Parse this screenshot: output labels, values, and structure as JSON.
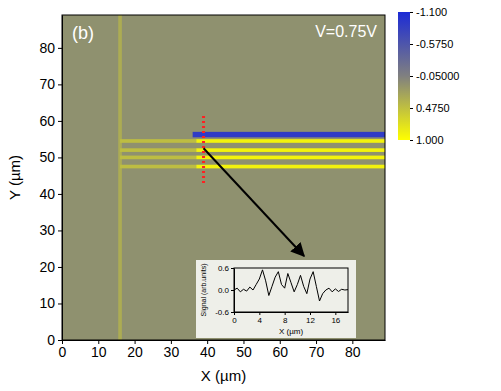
{
  "chart_data": [
    {
      "type": "heatmap",
      "panel_label": "(b)",
      "annotation": "V=0.75V",
      "x_label": "X (µm)",
      "y_label": "Y (µm)",
      "xlim": [
        0,
        89
      ],
      "ylim": [
        0,
        89
      ],
      "xticks": [
        0,
        10,
        20,
        30,
        40,
        50,
        60,
        70,
        80
      ],
      "yticks": [
        0,
        10,
        20,
        30,
        40,
        50,
        60,
        70,
        80
      ],
      "cells": [
        {
          "x": [
            0,
            89
          ],
          "y": [
            0,
            89
          ],
          "value": 0.05
        },
        {
          "x": [
            15.5,
            16.5
          ],
          "y": [
            0,
            89
          ],
          "value": 0.3
        },
        {
          "x": [
            16,
            37
          ],
          "y": [
            54,
            55
          ],
          "value": 0.45
        },
        {
          "x": [
            16,
            37
          ],
          "y": [
            51.5,
            52.5
          ],
          "value": 0.45
        },
        {
          "x": [
            16,
            37
          ],
          "y": [
            49.5,
            50.5
          ],
          "value": 0.45
        },
        {
          "x": [
            16,
            37
          ],
          "y": [
            47,
            48
          ],
          "value": 0.45
        },
        {
          "x": [
            37,
            89
          ],
          "y": [
            54,
            55
          ],
          "value": 0.9
        },
        {
          "x": [
            37,
            89
          ],
          "y": [
            51.5,
            52.5
          ],
          "value": 0.9
        },
        {
          "x": [
            37,
            89
          ],
          "y": [
            49.5,
            50.5
          ],
          "value": 0.9
        },
        {
          "x": [
            37,
            89
          ],
          "y": [
            47,
            48
          ],
          "value": 0.9
        },
        {
          "x": [
            36,
            89
          ],
          "y": [
            55.5,
            57
          ],
          "value": -0.9
        }
      ],
      "colorbar": {
        "range": [
          -1.1,
          1.0
        ],
        "ticks": [
          {
            "value": -1.1,
            "label": "-1.100"
          },
          {
            "value": -0.575,
            "label": "-0.5750"
          },
          {
            "value": -0.05,
            "label": "-0.05000"
          },
          {
            "value": 0.475,
            "label": "0.4750"
          },
          {
            "value": 1.0,
            "label": "1.000"
          }
        ],
        "colors": [
          "#1c2bd6",
          "#808080",
          "#ffff00"
        ]
      },
      "profile_line": {
        "x": 39,
        "y": [
          43,
          62
        ],
        "color": "#ff2020"
      }
    },
    {
      "type": "line",
      "x_label": "X (µm)",
      "y_label": "Signal (arb.units)",
      "xlim": [
        0,
        18
      ],
      "ylim": [
        -0.6,
        0.6
      ],
      "xticks": [
        0,
        4,
        8,
        12,
        16
      ],
      "yticks": [
        -0.6,
        {
          "value": 0,
          "label": "0.0"
        },
        0.6
      ],
      "color": "#000000",
      "x": [
        0,
        0.5,
        1,
        1.5,
        2,
        2.5,
        3,
        3.5,
        4,
        4.5,
        5,
        5.5,
        6,
        6.5,
        7,
        7.5,
        8,
        8.5,
        9,
        9.5,
        10,
        10.5,
        11,
        11.5,
        12,
        12.5,
        13,
        13.5,
        14,
        14.5,
        15,
        15.5,
        16,
        16.5,
        17,
        17.5,
        18
      ],
      "values": [
        0.0,
        0.05,
        -0.05,
        0.02,
        -0.03,
        0.08,
        0.0,
        0.15,
        0.3,
        0.55,
        0.25,
        -0.15,
        0.1,
        0.35,
        0.5,
        0.15,
        0.05,
        0.45,
        0.2,
        -0.05,
        0.15,
        0.4,
        0.1,
        -0.1,
        0.3,
        0.5,
        0.1,
        -0.3,
        -0.1,
        0.0,
        0.05,
        -0.05,
        0.03,
        -0.04,
        0.02,
        0.0,
        0.01
      ]
    }
  ]
}
